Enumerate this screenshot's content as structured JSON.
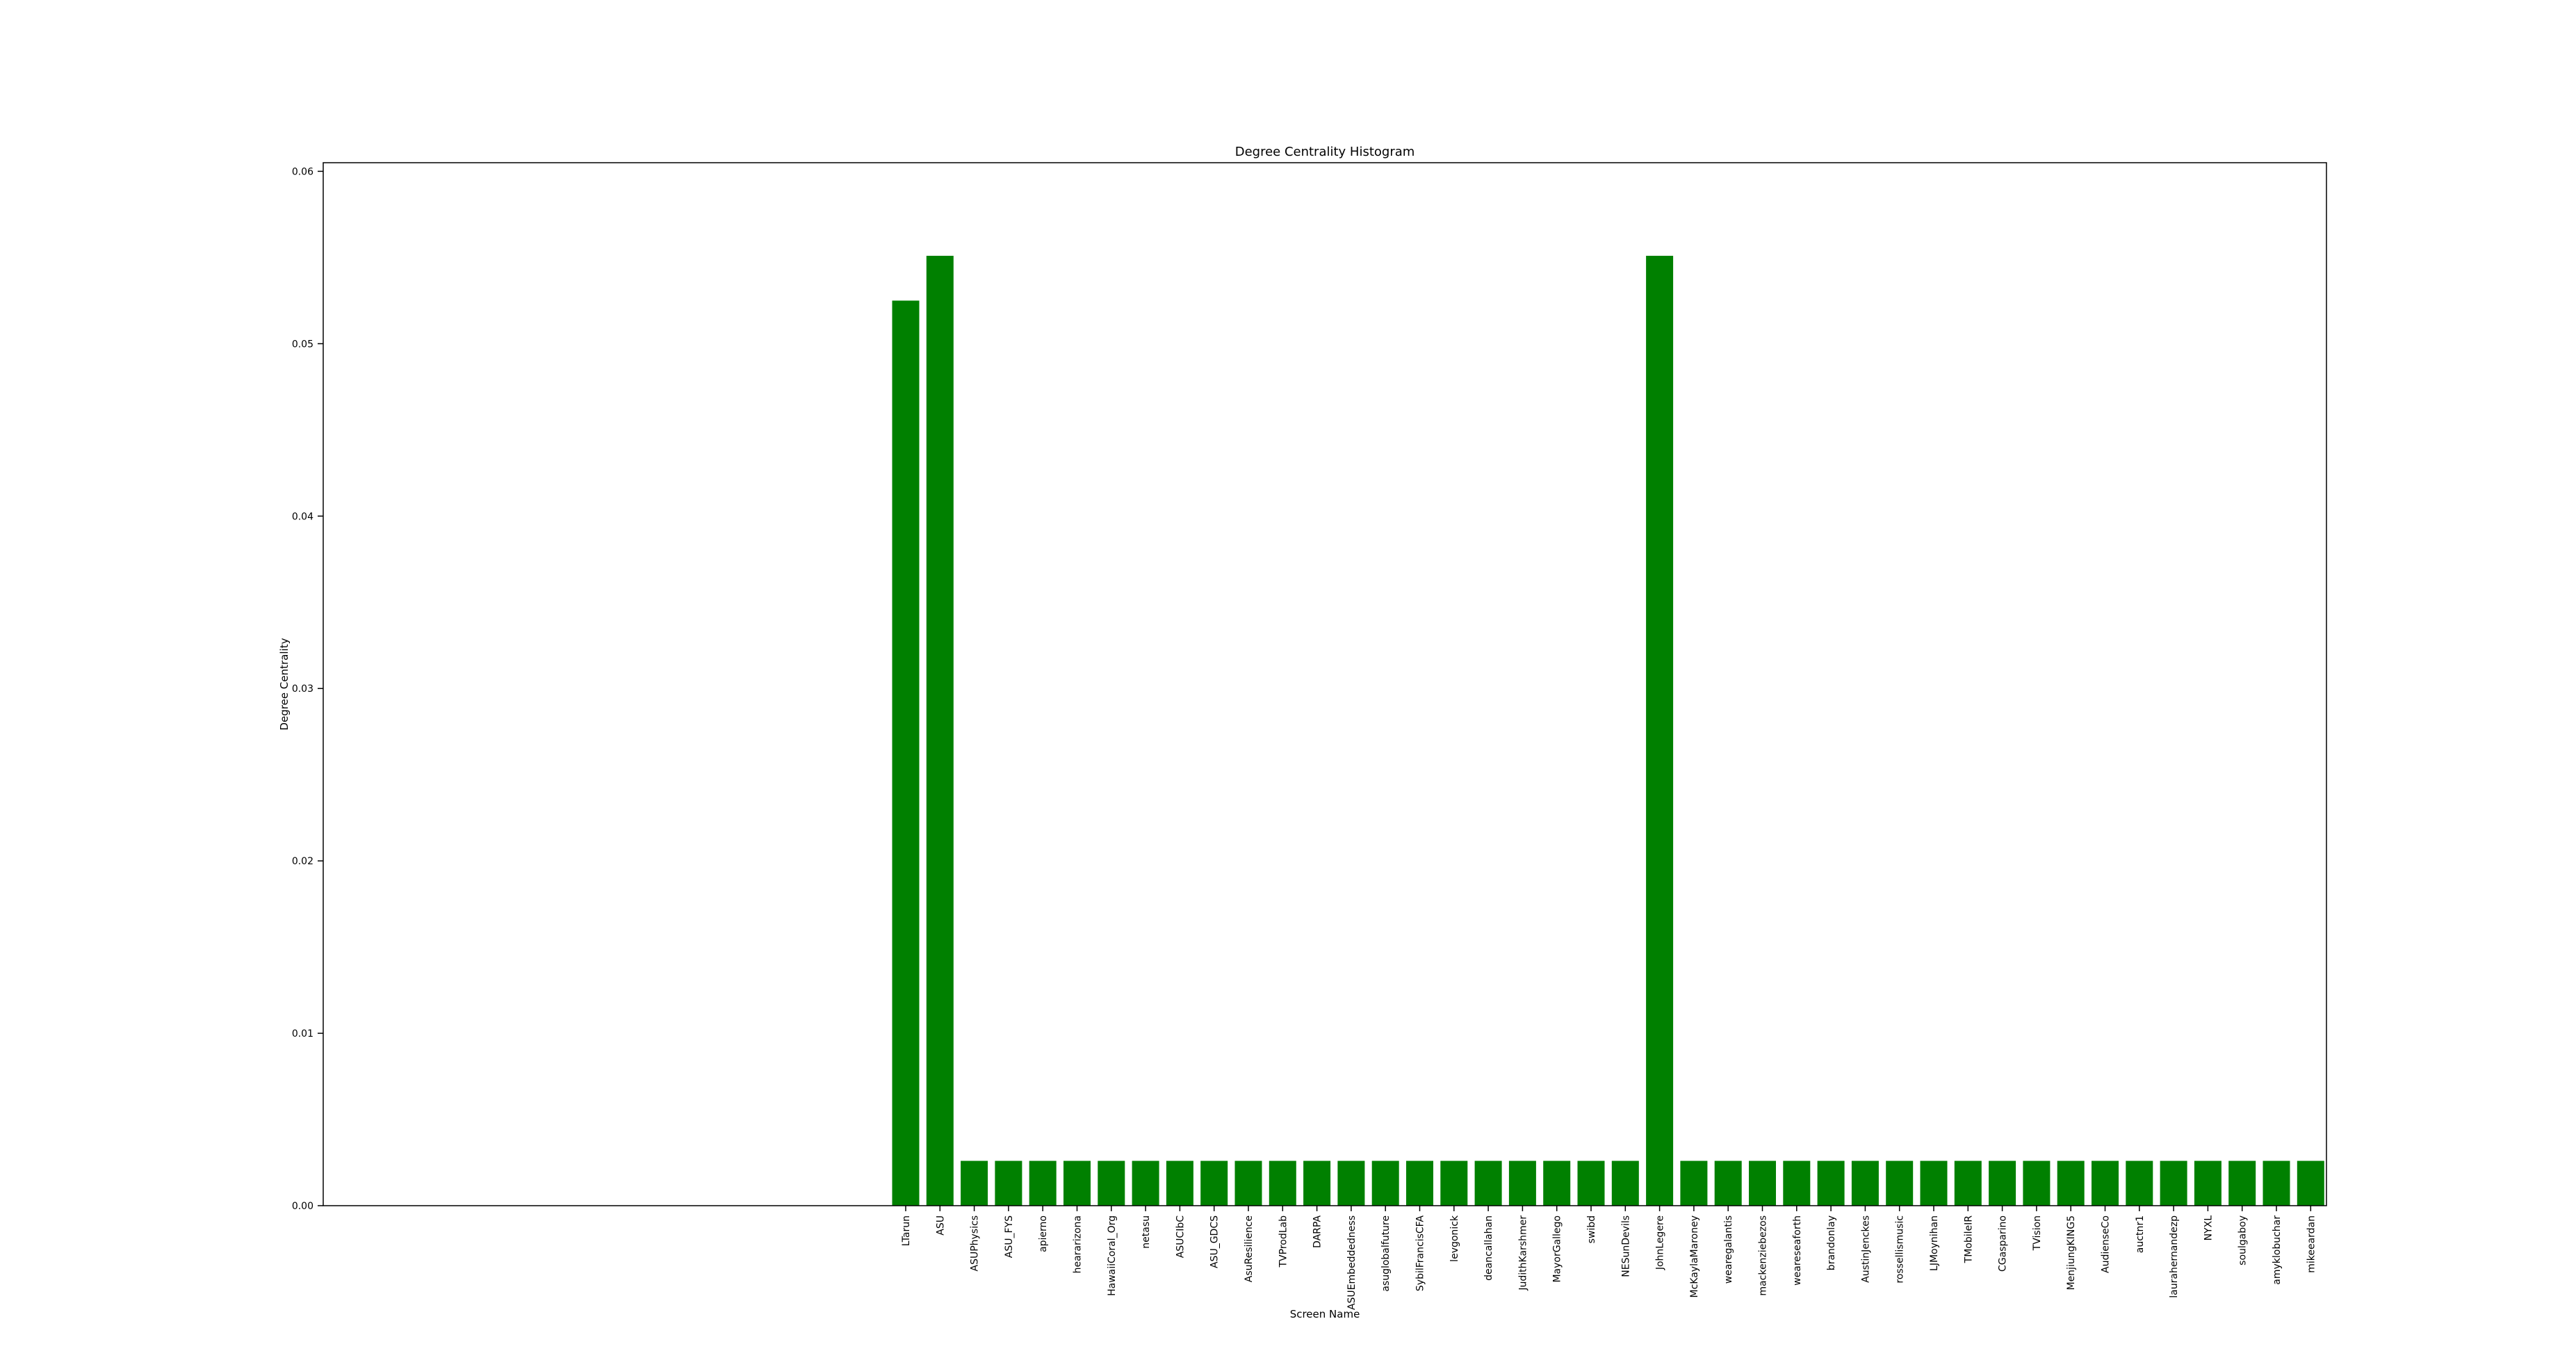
{
  "chart_data": {
    "type": "bar",
    "title": "Degree Centrality Histogram",
    "xlabel": "Screen Name",
    "ylabel": "Degree Centrality",
    "ylim": [
      0,
      0.0605
    ],
    "yticks": [
      0.0,
      0.01,
      0.02,
      0.03,
      0.04,
      0.05,
      0.06
    ],
    "ytick_labels": [
      "0.00",
      "0.01",
      "0.02",
      "0.03",
      "0.04",
      "0.05",
      "0.06"
    ],
    "grid": false,
    "bar_color": "#008000",
    "categories": [
      "LTarun",
      "ASU",
      "ASUPhysics",
      "ASU_FYS",
      "apierno",
      "heararizona",
      "HawaiiCoral_Org",
      "netasu",
      "ASUCIbC",
      "ASU_GDCS",
      "AsuResilience",
      "TVProdLab",
      "DARPA",
      "ASUEmbeddedness",
      "asuglobalfuture",
      "SybilFrancisCFA",
      "levgonick",
      "deancallahan",
      "JudithKarshmer",
      "MayorGallego",
      "swibd",
      "NESunDevils",
      "JohnLegere",
      "McKaylaMaroney",
      "wearegalantis",
      "mackenziebezos",
      "weareseaforth",
      "brandonlay",
      "AustinJenckes",
      "rossellismusic",
      "LJMoynihan",
      "TMobileIR",
      "CGasparino",
      "TVision",
      "MenjiungKING5",
      "AudienseCo",
      "auctnr1",
      "laurahernandezp",
      "NYXL",
      "soulgaboy",
      "amyklobuchar",
      "mikeeardan"
    ],
    "values": [
      0.0525,
      0.0551,
      0.0026,
      0.0026,
      0.0026,
      0.0026,
      0.0026,
      0.0026,
      0.0026,
      0.0026,
      0.0026,
      0.0026,
      0.0026,
      0.0026,
      0.0026,
      0.0026,
      0.0026,
      0.0026,
      0.0026,
      0.0026,
      0.0026,
      0.0026,
      0.0551,
      0.0026,
      0.0026,
      0.0026,
      0.0026,
      0.0026,
      0.0026,
      0.0026,
      0.0026,
      0.0026,
      0.0026,
      0.0026,
      0.0026,
      0.0026,
      0.0026,
      0.0026,
      0.0026,
      0.0026,
      0.0026,
      0.0026
    ]
  }
}
